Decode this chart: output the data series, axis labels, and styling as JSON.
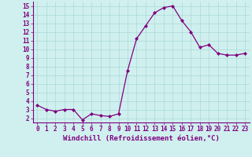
{
  "x": [
    0,
    1,
    2,
    3,
    4,
    5,
    6,
    7,
    8,
    9,
    10,
    11,
    12,
    13,
    14,
    15,
    16,
    17,
    18,
    19,
    20,
    21,
    22,
    23
  ],
  "y": [
    3.5,
    3.0,
    2.8,
    3.0,
    3.0,
    1.8,
    2.5,
    2.3,
    2.2,
    2.5,
    7.5,
    11.2,
    12.7,
    14.2,
    14.8,
    15.0,
    13.3,
    12.0,
    10.2,
    10.5,
    9.5,
    9.3,
    9.3,
    9.5
  ],
  "line_color": "#800080",
  "marker": "D",
  "marker_size": 2.0,
  "line_width": 0.9,
  "xlabel": "Windchill (Refroidissement éolien,°C)",
  "xlabel_fontsize": 6.5,
  "ylabel_ticks": [
    2,
    3,
    4,
    5,
    6,
    7,
    8,
    9,
    10,
    11,
    12,
    13,
    14,
    15
  ],
  "xlim": [
    -0.5,
    23.5
  ],
  "ylim": [
    1.5,
    15.5
  ],
  "bg_color": "#cff0ee",
  "grid_color": "#aad8d8",
  "tick_fontsize": 5.5,
  "tick_color": "#800080",
  "spine_color": "#800080",
  "xlabel_color": "#800080"
}
